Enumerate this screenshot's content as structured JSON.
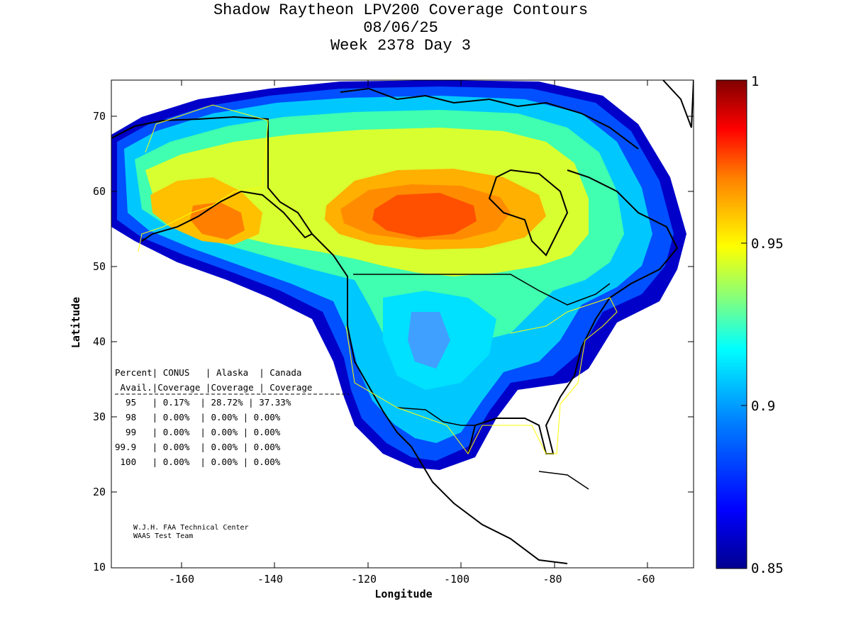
{
  "title": {
    "line1": "Shadow Raytheon LPV200 Coverage Contours",
    "line2": "08/06/25",
    "line3": "Week 2378 Day 3"
  },
  "axes": {
    "xlabel": "Longitude",
    "ylabel": "Latitude",
    "x_ticks": [
      "-160",
      "-140",
      "-120",
      "-100",
      "-80",
      "-60"
    ],
    "y_ticks": [
      "70",
      "60",
      "50",
      "40",
      "30",
      "20",
      "10"
    ]
  },
  "colorbar": {
    "labels": [
      "1",
      "0.95",
      "0.9",
      "0.85"
    ],
    "colors": [
      "#00008f",
      "#0000ff",
      "#0080ff",
      "#00ffff",
      "#80ff80",
      "#ffff00",
      "#ff8000",
      "#ff0000",
      "#800000"
    ]
  },
  "stats_table": {
    "header1": "Percent| CONUS   | Alaska  | Canada",
    "header2": " Avail.|Coverage |Coverage | Coverage",
    "rows": [
      "  95   | 0.17%  | 28.72% | 37.33%",
      "  98   | 0.00%  | 0.00% | 0.00%",
      "  99   | 0.00%  | 0.00% | 0.00%",
      "99.9   | 0.00%  | 0.00% | 0.00%",
      " 100   | 0.00%  | 0.00% | 0.00%"
    ]
  },
  "credit": {
    "line1": "W.J.H. FAA Technical Center",
    "line2": "WAAS Test Team"
  },
  "chart_data": {
    "type": "heatmap",
    "title": "Shadow Raytheon LPV200 Coverage Contours",
    "xlabel": "Longitude",
    "ylabel": "Latitude",
    "xlim": [
      -175,
      -50
    ],
    "ylim": [
      10,
      75
    ],
    "color_range": [
      0.85,
      1
    ],
    "peak_region": {
      "lon": -110,
      "lat": 56,
      "value": 0.96
    },
    "coverage_percent": {
      "columns": [
        "CONUS",
        "Alaska",
        "Canada"
      ],
      "rows": [
        {
          "avail": "95",
          "values": [
            "0.17%",
            "28.72%",
            "37.33%"
          ]
        },
        {
          "avail": "98",
          "values": [
            "0.00%",
            "0.00%",
            "0.00%"
          ]
        },
        {
          "avail": "99",
          "values": [
            "0.00%",
            "0.00%",
            "0.00%"
          ]
        },
        {
          "avail": "99.9",
          "values": [
            "0.00%",
            "0.00%",
            "0.00%"
          ]
        },
        {
          "avail": "100",
          "values": [
            "0.00%",
            "0.00%",
            "0.00%"
          ]
        }
      ]
    }
  }
}
